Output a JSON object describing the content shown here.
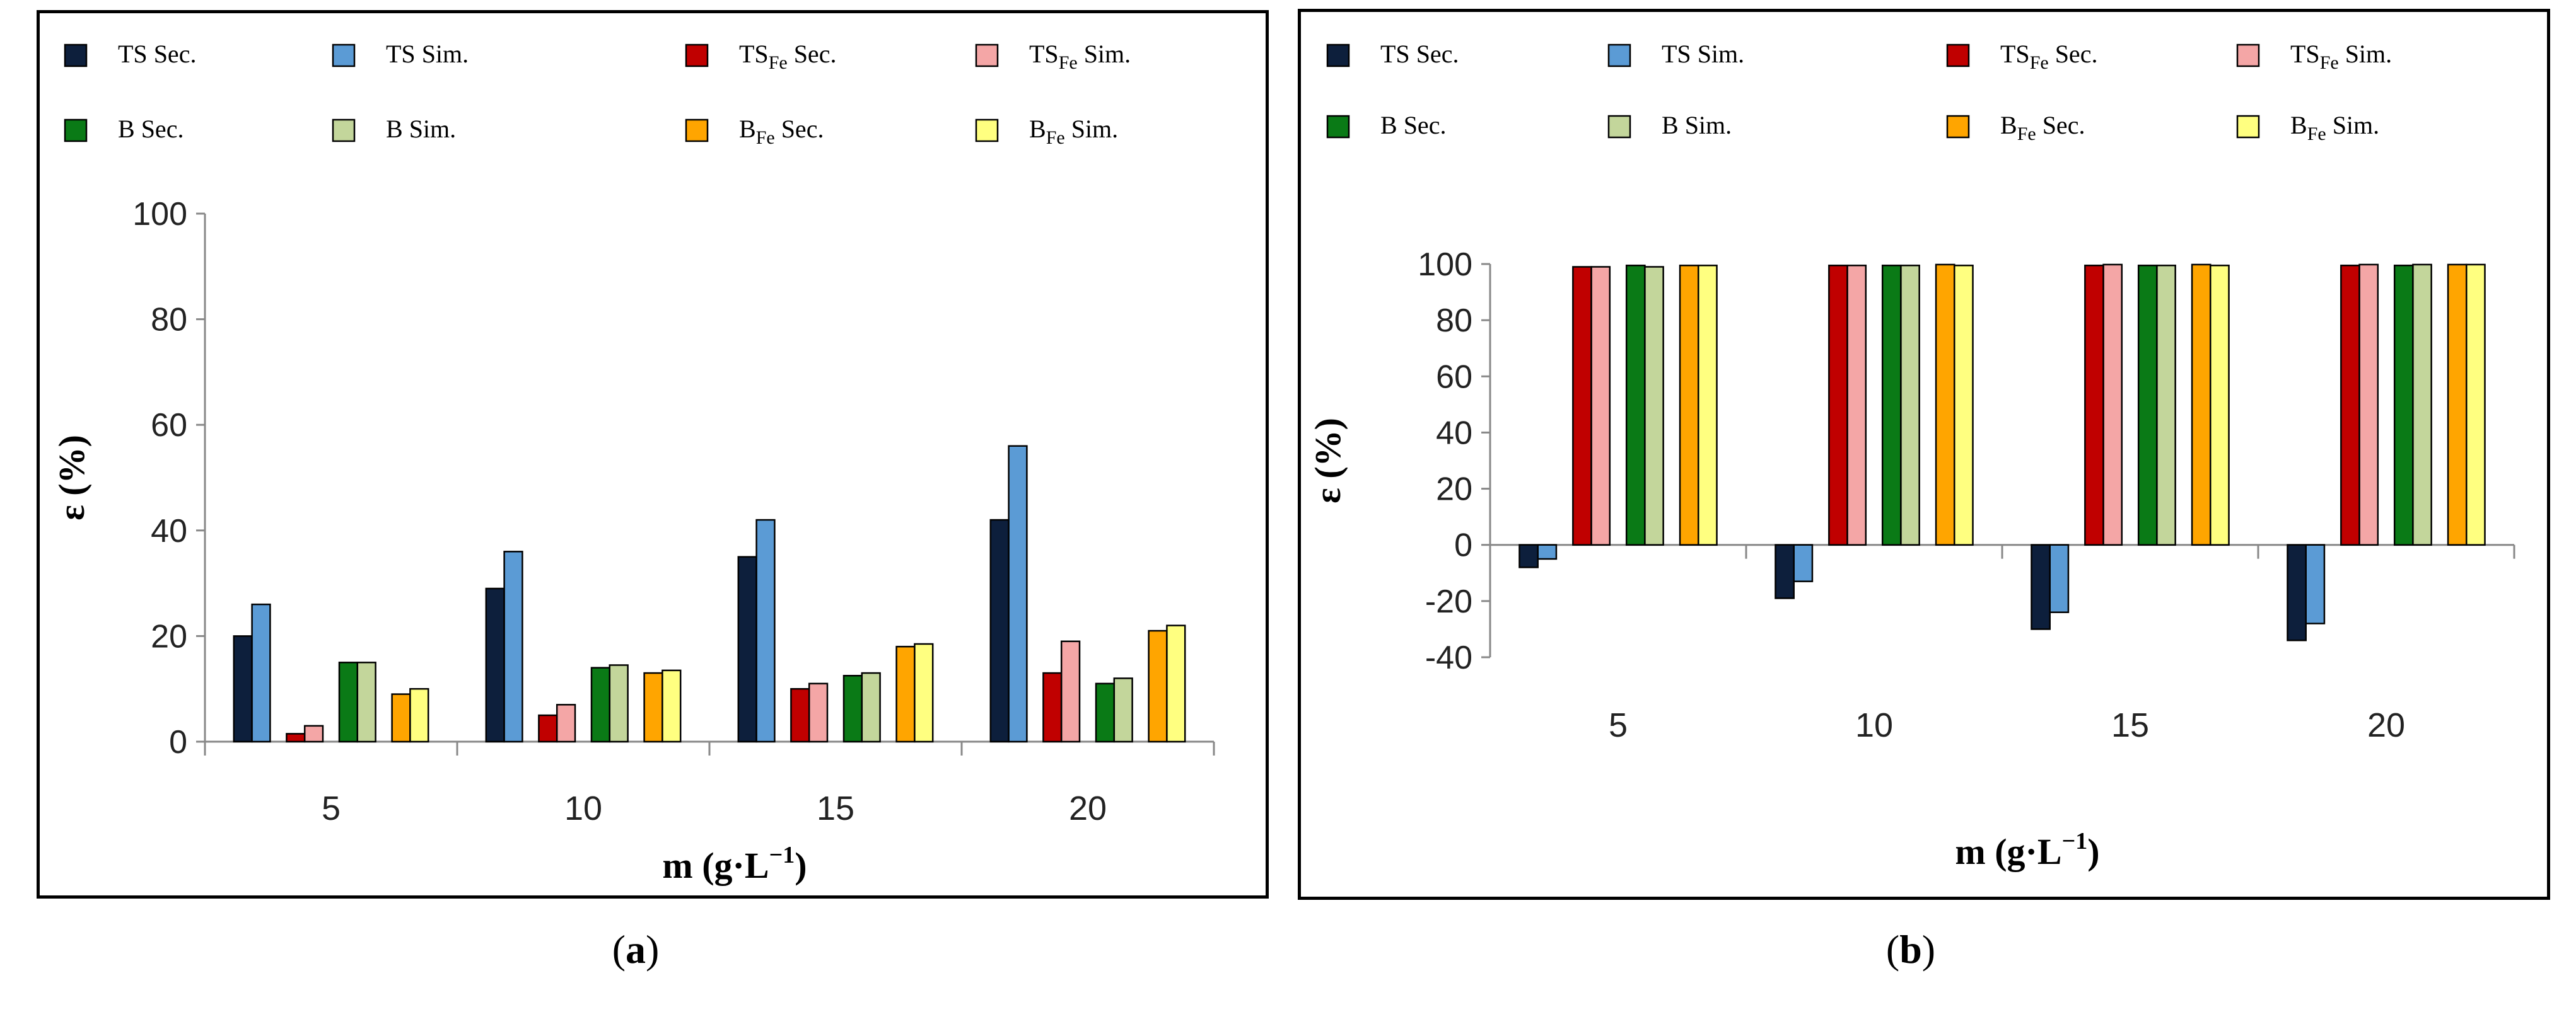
{
  "captions": {
    "a_letter": "a",
    "b_letter": "b"
  },
  "chart_data": [
    {
      "id": "a",
      "type": "bar",
      "title": "",
      "xlabel": "m (g·L⁻¹)",
      "ylabel": "ε (%)",
      "ylim": [
        0,
        100
      ],
      "yticks": [
        0,
        20,
        40,
        60,
        80,
        100
      ],
      "grid": false,
      "legend_position": "top",
      "categories": [
        "5",
        "10",
        "15",
        "20"
      ],
      "series": [
        {
          "name": "TS Sec.",
          "label_main": "TS",
          "label_sub": "",
          "label_tail": " Sec.",
          "color": "#0d1f3c",
          "values": [
            20,
            29,
            35,
            42
          ]
        },
        {
          "name": "TS Sim.",
          "label_main": "TS",
          "label_sub": "",
          "label_tail": " Sim.",
          "color": "#5b9bd5",
          "values": [
            26,
            36,
            42,
            56
          ]
        },
        {
          "name": "TSFe Sec.",
          "label_main": "TS",
          "label_sub": "Fe",
          "label_tail": " Sec.",
          "color": "#c00000",
          "values": [
            1.5,
            5,
            10,
            13
          ]
        },
        {
          "name": "TSFe Sim.",
          "label_main": "TS",
          "label_sub": "Fe",
          "label_tail": " Sim.",
          "color": "#f4a6a6",
          "values": [
            3,
            7,
            11,
            19
          ]
        },
        {
          "name": "B Sec.",
          "label_main": "B",
          "label_sub": "",
          "label_tail": " Sec.",
          "color": "#0a7a16",
          "values": [
            15,
            14,
            12.5,
            11
          ]
        },
        {
          "name": "B Sim.",
          "label_main": "B",
          "label_sub": "",
          "label_tail": " Sim.",
          "color": "#c3d69b",
          "values": [
            15,
            14.5,
            13,
            12
          ]
        },
        {
          "name": "BFe Sec.",
          "label_main": "B",
          "label_sub": "Fe",
          "label_tail": " Sec.",
          "color": "#ffa500",
          "values": [
            9,
            13,
            18,
            21
          ]
        },
        {
          "name": "BFe Sim.",
          "label_main": "B",
          "label_sub": "Fe",
          "label_tail": " Sim.",
          "color": "#ffff80",
          "values": [
            10,
            13.5,
            18.5,
            22
          ]
        }
      ]
    },
    {
      "id": "b",
      "type": "bar",
      "title": "",
      "xlabel": "m (g·L⁻¹)",
      "ylabel": "ε (%)",
      "ylim": [
        -40,
        100
      ],
      "yticks": [
        -40,
        -20,
        0,
        20,
        40,
        60,
        80,
        100
      ],
      "grid": false,
      "legend_position": "top",
      "categories": [
        "5",
        "10",
        "15",
        "20"
      ],
      "series": [
        {
          "name": "TS Sec.",
          "label_main": "TS",
          "label_sub": "",
          "label_tail": " Sec.",
          "color": "#0d1f3c",
          "values": [
            -8,
            -19,
            -30,
            -34
          ]
        },
        {
          "name": "TS Sim.",
          "label_main": "TS",
          "label_sub": "",
          "label_tail": " Sim.",
          "color": "#5b9bd5",
          "values": [
            -5,
            -13,
            -24,
            -28
          ]
        },
        {
          "name": "TSFe Sec.",
          "label_main": "TS",
          "label_sub": "Fe",
          "label_tail": " Sec.",
          "color": "#c00000",
          "values": [
            99,
            99.5,
            99.5,
            99.5
          ]
        },
        {
          "name": "TSFe Sim.",
          "label_main": "TS",
          "label_sub": "Fe",
          "label_tail": " Sim.",
          "color": "#f4a6a6",
          "values": [
            99,
            99.5,
            99.8,
            99.8
          ]
        },
        {
          "name": "B Sec.",
          "label_main": "B",
          "label_sub": "",
          "label_tail": " Sec.",
          "color": "#0a7a16",
          "values": [
            99.5,
            99.5,
            99.5,
            99.5
          ]
        },
        {
          "name": "B Sim.",
          "label_main": "B",
          "label_sub": "",
          "label_tail": " Sim.",
          "color": "#c3d69b",
          "values": [
            99,
            99.5,
            99.5,
            99.8
          ]
        },
        {
          "name": "BFe Sec.",
          "label_main": "B",
          "label_sub": "Fe",
          "label_tail": " Sec.",
          "color": "#ffa500",
          "values": [
            99.5,
            99.8,
            99.8,
            99.8
          ]
        },
        {
          "name": "BFe Sim.",
          "label_main": "B",
          "label_sub": "Fe",
          "label_tail": " Sim.",
          "color": "#ffff80",
          "values": [
            99.5,
            99.5,
            99.5,
            99.8
          ]
        }
      ]
    }
  ]
}
